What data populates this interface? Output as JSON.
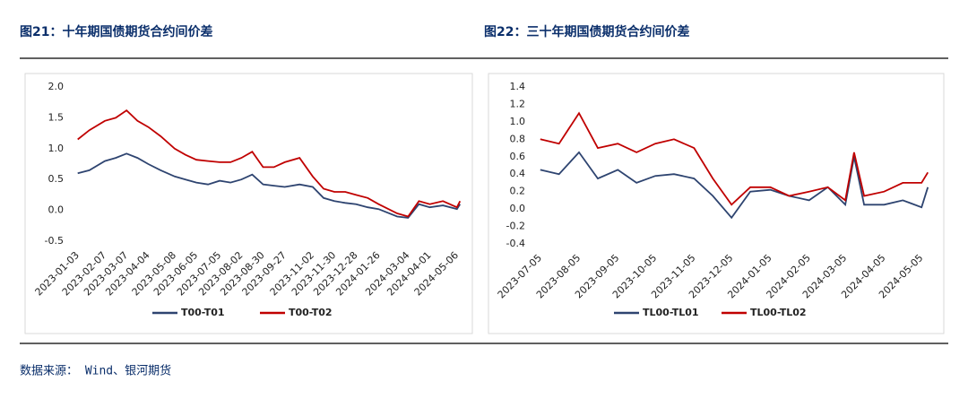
{
  "chart_data": [
    {
      "type": "line",
      "title": "图21：十年期国债期货合约间价差",
      "legend": "bottom",
      "grid": false,
      "x": [
        "2023-01-03",
        "2023-01-18",
        "2023-02-07",
        "2023-02-21",
        "2023-03-07",
        "2023-03-21",
        "2023-04-04",
        "2023-04-20",
        "2023-05-08",
        "2023-05-22",
        "2023-06-05",
        "2023-06-20",
        "2023-07-05",
        "2023-07-19",
        "2023-08-02",
        "2023-08-16",
        "2023-08-30",
        "2023-09-13",
        "2023-09-27",
        "2023-10-16",
        "2023-11-02",
        "2023-11-16",
        "2023-11-30",
        "2023-12-14",
        "2023-12-28",
        "2024-01-12",
        "2024-01-26",
        "2024-02-19",
        "2024-03-04",
        "2024-03-18",
        "2024-04-01",
        "2024-04-18",
        "2024-05-06",
        "2024-05-10"
      ],
      "series": [
        {
          "name": "T00-T01",
          "color": "#2e4470",
          "values": [
            0.6,
            0.65,
            0.8,
            0.85,
            0.92,
            0.85,
            0.75,
            0.65,
            0.55,
            0.5,
            0.45,
            0.42,
            0.48,
            0.45,
            0.5,
            0.58,
            0.42,
            0.4,
            0.38,
            0.42,
            0.38,
            0.2,
            0.15,
            0.12,
            0.1,
            0.05,
            0.02,
            -0.1,
            -0.12,
            0.1,
            0.05,
            0.08,
            0.02,
            0.1
          ]
        },
        {
          "name": "T00-T02",
          "color": "#c00000",
          "values": [
            1.15,
            1.3,
            1.45,
            1.5,
            1.62,
            1.45,
            1.35,
            1.2,
            1.0,
            0.9,
            0.82,
            0.8,
            0.78,
            0.78,
            0.85,
            0.95,
            0.7,
            0.7,
            0.78,
            0.85,
            0.55,
            0.35,
            0.3,
            0.3,
            0.25,
            0.2,
            0.1,
            -0.05,
            -0.1,
            0.15,
            0.1,
            0.15,
            0.05,
            0.15
          ]
        }
      ],
      "xlim": [
        "2023-01-01",
        "2024-05-12"
      ],
      "xticks": [
        "2023-01-03",
        "2023-02-07",
        "2023-03-07",
        "2023-04-04",
        "2023-05-08",
        "2023-06-05",
        "2023-07-05",
        "2023-08-02",
        "2023-08-30",
        "2023-09-27",
        "2023-11-02",
        "2023-11-30",
        "2023-12-28",
        "2024-01-26",
        "2024-03-04",
        "2024-04-01",
        "2024-05-06"
      ],
      "ylim": [
        -0.5,
        2.0
      ],
      "yticks": [
        -0.5,
        {
          "value": 0,
          "label": "0.0"
        },
        0.5,
        {
          "value": 1,
          "label": "1.0"
        },
        1.5,
        {
          "value": 2,
          "label": "2.0"
        }
      ]
    },
    {
      "type": "line",
      "title": "图22：三十年期国债期货合约间价差",
      "legend": "bottom",
      "grid": false,
      "x": [
        "2023-07-05",
        "2023-07-20",
        "2023-08-05",
        "2023-08-20",
        "2023-09-05",
        "2023-09-20",
        "2023-10-05",
        "2023-10-20",
        "2023-11-05",
        "2023-11-20",
        "2023-12-05",
        "2023-12-20",
        "2024-01-05",
        "2024-01-20",
        "2024-02-05",
        "2024-02-20",
        "2024-03-05",
        "2024-03-12",
        "2024-03-20",
        "2024-04-05",
        "2024-04-20",
        "2024-05-05",
        "2024-05-10"
      ],
      "series": [
        {
          "name": "TL00-TL01",
          "color": "#2e4470",
          "values": [
            0.45,
            0.4,
            0.65,
            0.35,
            0.45,
            0.3,
            0.38,
            0.4,
            0.35,
            0.15,
            -0.1,
            0.2,
            0.22,
            0.15,
            0.1,
            0.25,
            0.05,
            0.6,
            0.05,
            0.05,
            0.1,
            0.02,
            0.25
          ]
        },
        {
          "name": "TL00-TL02",
          "color": "#c00000",
          "values": [
            0.8,
            0.75,
            1.1,
            0.7,
            0.75,
            0.65,
            0.75,
            0.8,
            0.7,
            0.35,
            0.05,
            0.25,
            0.25,
            0.15,
            0.2,
            0.25,
            0.1,
            0.65,
            0.15,
            0.2,
            0.3,
            0.3,
            0.42
          ]
        }
      ],
      "xlim": [
        "2023-07-03",
        "2024-05-12"
      ],
      "xticks": [
        "2023-07-05",
        "2023-08-05",
        "2023-09-05",
        "2023-10-05",
        "2023-11-05",
        "2023-12-05",
        "2024-01-05",
        "2024-02-05",
        "2024-03-05",
        "2024-04-05",
        "2024-05-05"
      ],
      "ylim": [
        -0.4,
        1.4
      ],
      "yticks": [
        -0.4,
        -0.2,
        {
          "value": 0,
          "label": "0.0"
        },
        0.2,
        0.4,
        0.6,
        0.8,
        {
          "value": 1,
          "label": "1.0"
        },
        1.2,
        1.4
      ]
    }
  ],
  "source": "数据来源： Wind、银河期货"
}
